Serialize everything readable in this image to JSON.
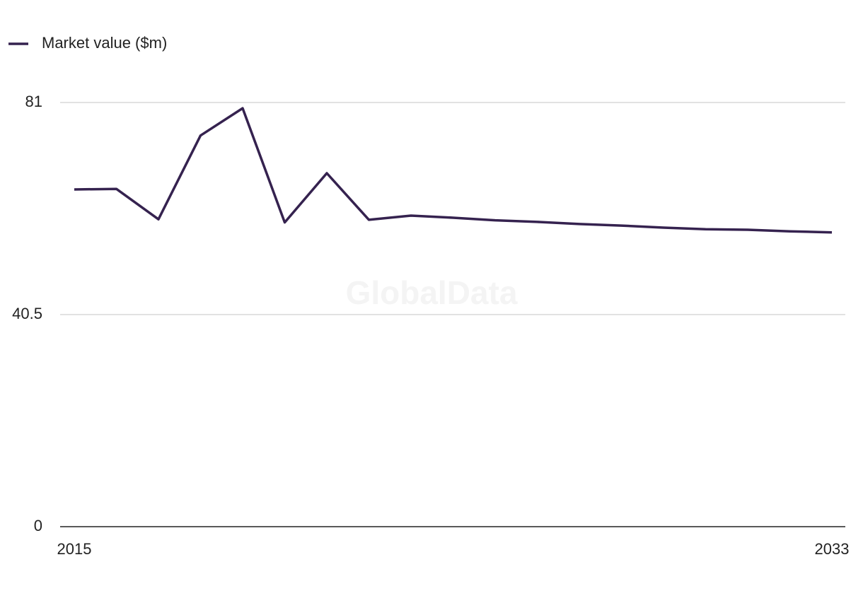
{
  "chart_data": {
    "type": "line",
    "watermark": "GlobalData",
    "x": [
      2015,
      2016,
      2017,
      2018,
      2019,
      2020,
      2021,
      2022,
      2023,
      2024,
      2025,
      2026,
      2027,
      2028,
      2029,
      2030,
      2031,
      2032,
      2033
    ],
    "series": [
      {
        "name": "Market value ($m)",
        "color": "#35224f",
        "values": [
          64.4,
          64.5,
          58.7,
          74.7,
          79.9,
          58.1,
          67.5,
          58.6,
          59.4,
          59.0,
          58.5,
          58.2,
          57.8,
          57.5,
          57.1,
          56.8,
          56.7,
          56.4,
          56.2
        ]
      }
    ],
    "xlim": [
      2015,
      2033
    ],
    "xticks": [
      2015,
      2033
    ],
    "ylim": [
      0,
      81
    ],
    "yticks": [
      0,
      40.5,
      81
    ],
    "grid": true
  }
}
